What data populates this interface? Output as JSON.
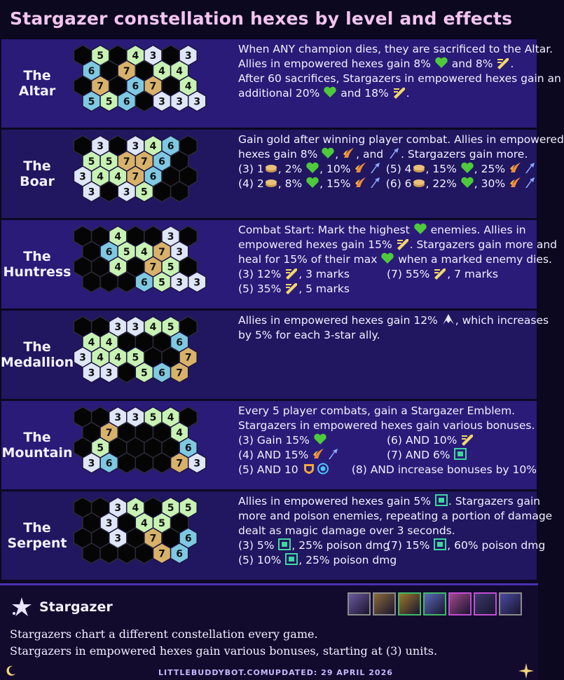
{
  "title": "Stargazer constellation hexes by level and effects",
  "colors": {
    "row_a": "#2a1b78",
    "row_b": "#211660",
    "tile_green": "#c8f2b4",
    "tile_blue": "#7fc8e2",
    "tile_gold": "#d9b26a",
    "tile_white": "#dfe6f8",
    "tile_black": "#050505",
    "heart": "#4ec93c",
    "title": "#f2c4ee"
  },
  "constellations": [
    {
      "name": "The\nAltar",
      "grid": [
        [
          "k",
          "g5",
          "k",
          "g4",
          "w3",
          "k",
          "w3"
        ],
        [
          "b6",
          "k",
          "y7",
          "k",
          "g4",
          "g4"
        ],
        [
          "k",
          "y7",
          "k",
          "b6",
          "y7",
          "k",
          "g4"
        ],
        [
          "b5",
          "g5",
          "b6",
          "k",
          "w3",
          "w3",
          "w3"
        ]
      ],
      "desc": [
        {
          "segs": [
            {
              "t": "When ANY champion dies, they are sacrificed to the Altar."
            }
          ]
        },
        {
          "segs": [
            {
              "t": "Allies in empowered hexes gain 8% "
            },
            {
              "i": "heart-icon"
            },
            {
              "t": " and 8% "
            },
            {
              "i": "sword-icon"
            },
            {
              "t": "."
            }
          ]
        },
        {
          "segs": [
            {
              "t": "After 60 sacrifices, Stargazers in empowered hexes gain an"
            }
          ]
        },
        {
          "segs": [
            {
              "t": "additional 20% "
            },
            {
              "i": "heart-icon"
            },
            {
              "t": " and 18% "
            },
            {
              "i": "sword-icon"
            },
            {
              "t": "."
            }
          ]
        }
      ]
    },
    {
      "name": "The\nBoar",
      "grid": [
        [
          "k",
          "w3",
          "k",
          "w3",
          "g4",
          "b6",
          "k"
        ],
        [
          "g5",
          "g5",
          "y7",
          "y7",
          "b6",
          "k"
        ],
        [
          "w3",
          "g4",
          "g4",
          "y7",
          "b6",
          "k",
          "k"
        ],
        [
          "w3",
          "k",
          "w3",
          "g5",
          "k",
          "k"
        ]
      ],
      "desc": [
        {
          "segs": [
            {
              "t": "Gain gold after winning player combat. Allies in empowered"
            }
          ]
        },
        {
          "segs": [
            {
              "t": "hexes gain 8% "
            },
            {
              "i": "heart-icon"
            },
            {
              "t": ", "
            },
            {
              "i": "claw-icon"
            },
            {
              "t": ", and "
            },
            {
              "i": "bolt-icon"
            },
            {
              "t": ". Stargazers gain more."
            }
          ]
        },
        {
          "cols": [
            [
              {
                "t": "(3) 1"
              },
              {
                "i": "gold-icon"
              },
              {
                "t": ", 2% "
              },
              {
                "i": "heart-icon"
              },
              {
                "t": ", 10% "
              },
              {
                "i": "claw-icon"
              },
              {
                "i": "bolt-icon"
              }
            ],
            [
              {
                "t": "(5) 4"
              },
              {
                "i": "gold-icon"
              },
              {
                "t": ", 15% "
              },
              {
                "i": "heart-icon"
              },
              {
                "t": ", 25% "
              },
              {
                "i": "claw-icon"
              },
              {
                "i": "bolt-icon"
              }
            ]
          ]
        },
        {
          "cols": [
            [
              {
                "t": "(4) 2"
              },
              {
                "i": "gold-icon"
              },
              {
                "t": ", 8% "
              },
              {
                "i": "heart-icon"
              },
              {
                "t": ", 15% "
              },
              {
                "i": "claw-icon"
              },
              {
                "i": "bolt-icon"
              }
            ],
            [
              {
                "t": "(6) 6"
              },
              {
                "i": "gold-icon"
              },
              {
                "t": ", 22% "
              },
              {
                "i": "heart-icon"
              },
              {
                "t": ", 30% "
              },
              {
                "i": "claw-icon"
              },
              {
                "i": "bolt-icon"
              }
            ]
          ]
        }
      ]
    },
    {
      "name": "The\nHuntress",
      "grid": [
        [
          "k",
          "k",
          "g4",
          "k",
          "k",
          "w3",
          "k"
        ],
        [
          "k",
          "b6",
          "g5",
          "g4",
          "y7",
          "w3"
        ],
        [
          "k",
          "k",
          "g4",
          "k",
          "y7",
          "g5",
          "k"
        ],
        [
          "k",
          "k",
          "k",
          "b6",
          "g5",
          "w3",
          "w3"
        ]
      ],
      "desc": [
        {
          "segs": [
            {
              "t": "Combat Start: Mark the highest "
            },
            {
              "i": "heart-icon"
            },
            {
              "t": " enemies. Allies in"
            }
          ]
        },
        {
          "segs": [
            {
              "t": "empowered hexes gain 15% "
            },
            {
              "i": "sword-icon"
            },
            {
              "t": ". Stargazers gain more and"
            }
          ]
        },
        {
          "segs": [
            {
              "t": "heal for 15% of their max "
            },
            {
              "i": "heart-icon"
            },
            {
              "t": " when a marked enemy dies."
            }
          ]
        },
        {
          "cols": [
            [
              {
                "t": "(3) 12% "
              },
              {
                "i": "sword-icon"
              },
              {
                "t": ", 3 marks"
              }
            ],
            [
              {
                "t": "(7) 55% "
              },
              {
                "i": "sword-icon"
              },
              {
                "t": ", 7 marks"
              }
            ]
          ]
        },
        {
          "cols": [
            [
              {
                "t": "(5) 35% "
              },
              {
                "i": "sword-icon"
              },
              {
                "t": ", 5 marks"
              }
            ],
            []
          ]
        }
      ]
    },
    {
      "name": "The\nMedallion",
      "grid": [
        [
          "k",
          "k",
          "w3",
          "w3",
          "g4",
          "g5",
          "k"
        ],
        [
          "g4",
          "g4",
          "k",
          "k",
          "k",
          "b6"
        ],
        [
          "w3",
          "g4",
          "g4",
          "g5",
          "k",
          "k",
          "y7"
        ],
        [
          "w3",
          "w3",
          "k",
          "g5",
          "b6",
          "y7"
        ]
      ],
      "desc": [
        {
          "segs": [
            {
              "t": "Allies in empowered hexes gain 12% "
            },
            {
              "i": "wing-icon"
            },
            {
              "t": ", which increases"
            }
          ]
        },
        {
          "segs": [
            {
              "t": "by 5% for each 3-star ally."
            }
          ]
        }
      ]
    },
    {
      "name": "The\nMountain",
      "grid": [
        [
          "k",
          "k",
          "w3",
          "w3",
          "g5",
          "g4",
          "k"
        ],
        [
          "k",
          "y7",
          "k",
          "k",
          "k",
          "g4"
        ],
        [
          "k",
          "g5",
          "k",
          "k",
          "k",
          "k",
          "b6"
        ],
        [
          "w3",
          "b6",
          "k",
          "k",
          "k",
          "y7",
          "w3"
        ]
      ],
      "desc": [
        {
          "segs": [
            {
              "t": "Every 5 player combats, gain a Stargazer Emblem."
            }
          ]
        },
        {
          "segs": [
            {
              "t": "Stargazers in empowered hexes gain various bonuses."
            }
          ]
        },
        {
          "cols": [
            [
              {
                "t": "(3) Gain 15% "
              },
              {
                "i": "heart-icon"
              }
            ],
            [
              {
                "t": "(6) AND 10% "
              },
              {
                "i": "sword-icon"
              }
            ]
          ]
        },
        {
          "cols": [
            [
              {
                "t": "(4) AND 15% "
              },
              {
                "i": "claw-icon"
              },
              {
                "i": "bolt-icon"
              }
            ],
            [
              {
                "t": "(7) AND 6% "
              },
              {
                "i": "omnivamp-icon"
              }
            ]
          ]
        },
        {
          "cols": [
            [
              {
                "t": "(5) AND 10 "
              },
              {
                "i": "armor-icon"
              },
              {
                "i": "mr-icon"
              }
            ],
            [
              {
                "t": "(8) AND increase bonuses by 10%"
              }
            ]
          ]
        }
      ]
    },
    {
      "name": "The\nSerpent",
      "grid": [
        [
          "k",
          "k",
          "w3",
          "g4",
          "k",
          "g5",
          "g5"
        ],
        [
          "k",
          "w3",
          "k",
          "g4",
          "g5",
          "k"
        ],
        [
          "k",
          "k",
          "w3",
          "k",
          "y7",
          "k",
          "b6"
        ],
        [
          "k",
          "k",
          "k",
          "k",
          "y7",
          "b6"
        ]
      ],
      "desc": [
        {
          "segs": [
            {
              "t": "Allies in empowered hexes gain 5% "
            },
            {
              "i": "omnivamp-icon"
            },
            {
              "t": ". Stargazers gain"
            }
          ]
        },
        {
          "segs": [
            {
              "t": "more and poison enemies, repeating a portion of damage"
            }
          ]
        },
        {
          "segs": [
            {
              "t": "dealt as magic damage over 3 seconds."
            }
          ]
        },
        {
          "cols": [
            [
              {
                "t": "(3) 5% "
              },
              {
                "i": "omnivamp-icon"
              },
              {
                "t": ", 25% poison dmg"
              }
            ],
            [
              {
                "t": "(7) 15% "
              },
              {
                "i": "omnivamp-icon"
              },
              {
                "t": ", 60% poison dmg"
              }
            ]
          ]
        },
        {
          "cols": [
            [
              {
                "t": "(5) 10% "
              },
              {
                "i": "omnivamp-icon"
              },
              {
                "t": ", 25% poison dmg"
              }
            ],
            []
          ]
        }
      ]
    }
  ],
  "trait": {
    "icon": "stargazer-icon",
    "name": "Stargazer",
    "desc1": "Stargazers chart a different constellation every game.",
    "desc2": "Stargazers in empowered hexes gain various bonuses, starting at (3) units.",
    "portraits": [
      {
        "icon": "champion-portrait-1",
        "border": "#8a8a8a",
        "tint": "#6b5a9e"
      },
      {
        "icon": "champion-portrait-2",
        "border": "#8a8a8a",
        "tint": "#8a6a3a"
      },
      {
        "icon": "champion-portrait-3",
        "border": "#3fb86a",
        "tint": "#9a7a2a"
      },
      {
        "icon": "champion-portrait-4",
        "border": "#3fb86a",
        "tint": "#5a6ab8"
      },
      {
        "icon": "champion-portrait-5",
        "border": "#c24fd0",
        "tint": "#a04a8a"
      },
      {
        "icon": "champion-portrait-6",
        "border": "#c24fd0",
        "tint": "#3a3a6a"
      },
      {
        "icon": "stargazer-emblem-icon",
        "border": "#8a8a8a",
        "tint": "#4a4aa0"
      }
    ]
  },
  "site": {
    "url": "LITTLEBUDDYBOT.COM",
    "updated": "UPDATED: 29 APRIL 2026"
  }
}
